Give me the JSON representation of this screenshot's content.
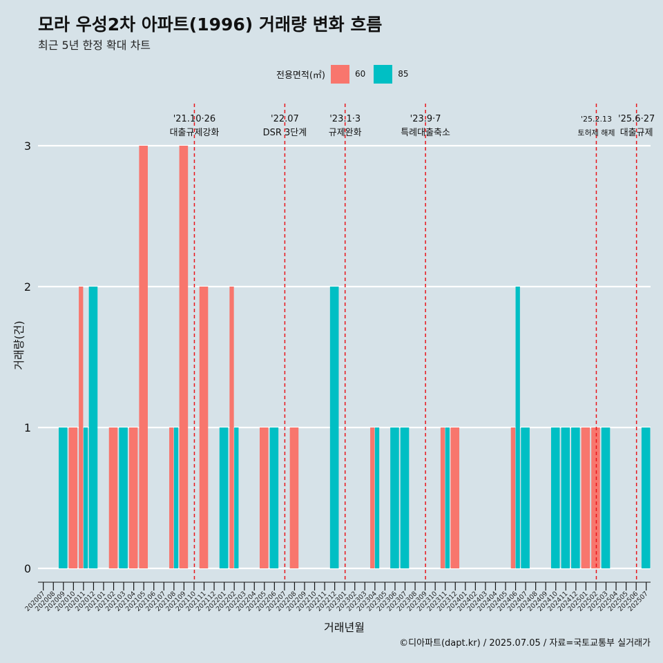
{
  "header": {
    "title": "모라 우성2차 아파트(1996) 거래량 변화 흐름",
    "subtitle": "최근 5년 한정 확대 차트"
  },
  "caption": "©디아파트(dapt.kr) / 2025.07.05 / 자료=국토교통부 실거래가",
  "legend": {
    "title": "전용면적(㎡)",
    "items": [
      {
        "label": "60",
        "color": "#f8766d"
      },
      {
        "label": "85",
        "color": "#00bfc4"
      }
    ]
  },
  "chart_data": {
    "type": "bar",
    "title": "모라 우성2차 아파트(1996) 거래량 변화 흐름",
    "subtitle": "최근 5년 한정 확대 차트",
    "xlabel": "거래년월",
    "ylabel": "거래량(건)",
    "ylim": [
      0,
      3
    ],
    "yticks": [
      0,
      1,
      2,
      3
    ],
    "grid": true,
    "legend_position": "top",
    "categories": [
      "202007",
      "202008",
      "202009",
      "202010",
      "202011",
      "202012",
      "202101",
      "202102",
      "202103",
      "202104",
      "202105",
      "202106",
      "202107",
      "202108",
      "202109",
      "202110",
      "202111",
      "202112",
      "202201",
      "202202",
      "202203",
      "202204",
      "202205",
      "202206",
      "202207",
      "202208",
      "202209",
      "202210",
      "202211",
      "202212",
      "202301",
      "202302",
      "202303",
      "202304",
      "202305",
      "202306",
      "202307",
      "202308",
      "202309",
      "202310",
      "202311",
      "202312",
      "202401",
      "202402",
      "202403",
      "202404",
      "202405",
      "202406",
      "202407",
      "202408",
      "202409",
      "202410",
      "202411",
      "202412",
      "202501",
      "202502",
      "202503",
      "202504",
      "202505",
      "202506",
      "202507"
    ],
    "series": [
      {
        "name": "60",
        "color": "#f8766d",
        "values": [
          0,
          0,
          0,
          1,
          2,
          0,
          0,
          1,
          0,
          1,
          3,
          0,
          0,
          1,
          3,
          0,
          2,
          0,
          0,
          2,
          0,
          0,
          1,
          0,
          0,
          1,
          0,
          0,
          0,
          0,
          0,
          0,
          0,
          1,
          0,
          0,
          0,
          0,
          0,
          0,
          1,
          1,
          0,
          0,
          0,
          0,
          0,
          1,
          0,
          0,
          0,
          0,
          0,
          0,
          1,
          1,
          0,
          0,
          0,
          0,
          0
        ]
      },
      {
        "name": "85",
        "color": "#00bfc4",
        "values": [
          0,
          0,
          1,
          0,
          1,
          2,
          0,
          0,
          1,
          0,
          0,
          0,
          0,
          1,
          0,
          0,
          0,
          0,
          1,
          1,
          0,
          0,
          0,
          1,
          0,
          0,
          0,
          0,
          0,
          2,
          0,
          0,
          0,
          1,
          0,
          1,
          1,
          0,
          0,
          0,
          1,
          0,
          0,
          0,
          0,
          0,
          0,
          2,
          1,
          0,
          0,
          1,
          1,
          1,
          0,
          0,
          1,
          0,
          0,
          0,
          1
        ]
      }
    ],
    "annotations": [
      {
        "x": "202110",
        "date": "'21.10·26",
        "label": "대출규제강화"
      },
      {
        "x": "202207",
        "date": "'22.07",
        "label": "DSR 3단계"
      },
      {
        "x": "202301",
        "date": "'23.1·3",
        "label": "규제완화"
      },
      {
        "x": "202309",
        "date": "'23.9·7",
        "label": "특례대출축소"
      },
      {
        "x": "202502",
        "date": "'25.2.13",
        "label": "토허제 해제"
      },
      {
        "x": "202506",
        "date": "'25.6·27",
        "label": "대출규제"
      }
    ]
  }
}
